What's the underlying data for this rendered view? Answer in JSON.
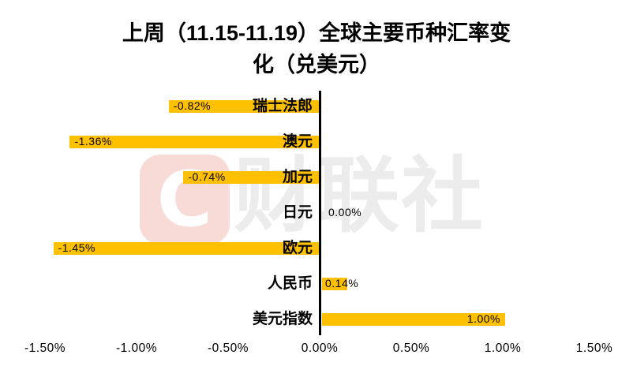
{
  "header": {
    "title_line1": "上周（11.15-11.19）全球主要币种汇率变",
    "title_line2": "化（兑美元）"
  },
  "chart_data": {
    "type": "bar",
    "orientation": "horizontal",
    "title": "上周（11.15-11.19）全球主要币种汇率变化（兑美元）",
    "xlabel": "",
    "ylabel": "",
    "unit": "%",
    "categories": [
      "瑞士法郎",
      "澳元",
      "加元",
      "日元",
      "欧元",
      "人民币",
      "美元指数"
    ],
    "values": [
      -0.82,
      -1.36,
      -0.74,
      0.0,
      -1.45,
      0.14,
      1.0
    ],
    "value_labels": [
      "-0.82%",
      "-1.36%",
      "-0.74%",
      "0.00%",
      "-1.45%",
      "0.14%",
      "1.00%"
    ],
    "xlim": [
      -1.5,
      1.5
    ],
    "x_ticks": [
      {
        "value": -1.5,
        "label": "-1.50%"
      },
      {
        "value": -1.0,
        "label": "-1.00%"
      },
      {
        "value": -0.5,
        "label": "-0.50%"
      },
      {
        "value": 0.0,
        "label": "0.00%"
      },
      {
        "value": 0.5,
        "label": "0.50%"
      },
      {
        "value": 1.0,
        "label": "1.00%"
      },
      {
        "value": 1.5,
        "label": "1.50%"
      }
    ],
    "grid": false,
    "legend": false,
    "bar_color": "#FFC000",
    "axis_color": "#000000",
    "label_color": "#000000"
  },
  "watermark": {
    "logo_letter": "C",
    "text": "财联社",
    "logo_bg_color": "#F8DBD7",
    "logo_letter_color": "#FFFFFF",
    "text_color": "#ECECEC"
  }
}
